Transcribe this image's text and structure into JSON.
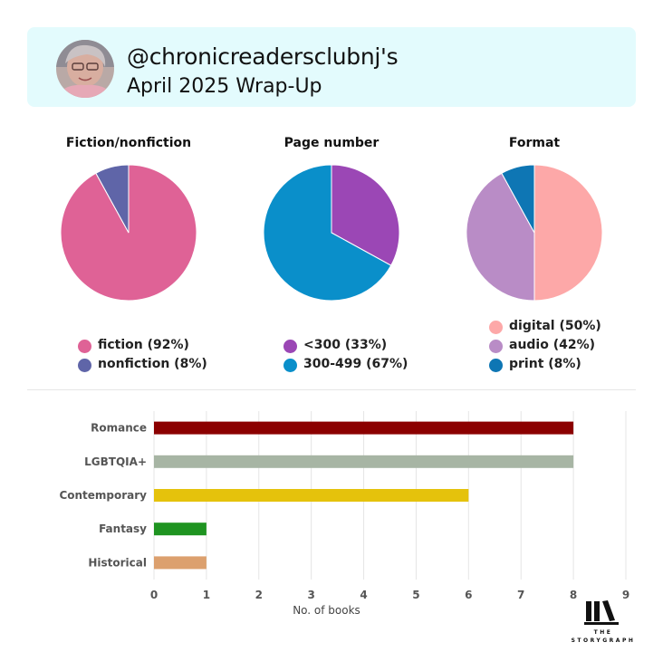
{
  "header": {
    "handle": "@chronicreadersclubnj's",
    "subtitle": "April 2025 Wrap-Up"
  },
  "pies": [
    {
      "title": "Fiction/nonfiction",
      "slices": [
        {
          "label": "fiction (92%)",
          "value": 92,
          "color": "#df6296"
        },
        {
          "label": "nonfiction (8%)",
          "value": 8,
          "color": "#5f65a8"
        }
      ]
    },
    {
      "title": "Page number",
      "slices": [
        {
          "label": "<300 (33%)",
          "value": 33,
          "color": "#9b47b5"
        },
        {
          "label": "300-499 (67%)",
          "value": 67,
          "color": "#0a8fca"
        }
      ]
    },
    {
      "title": "Format",
      "slices": [
        {
          "label": "digital (50%)",
          "value": 50,
          "color": "#fda8a8"
        },
        {
          "label": "audio (42%)",
          "value": 42,
          "color": "#b98cc6"
        },
        {
          "label": "print (8%)",
          "value": 8,
          "color": "#0e76b4"
        }
      ]
    }
  ],
  "chart_data": {
    "type": "bar",
    "orientation": "horizontal",
    "categories": [
      "Romance",
      "LGBTQIA+",
      "Contemporary",
      "Fantasy",
      "Historical"
    ],
    "values": [
      8,
      8,
      6,
      1,
      1
    ],
    "colors": [
      "#8b0000",
      "#a7b5a4",
      "#e5c20c",
      "#1f9421",
      "#dca06e"
    ],
    "xlabel": "No. of books",
    "xlim": [
      0,
      9
    ],
    "xticks": [
      0,
      1,
      2,
      3,
      4,
      5,
      6,
      7,
      8,
      9
    ],
    "grid": true
  },
  "logo": {
    "line1": "THE",
    "line2": "STORYGRAPH"
  }
}
